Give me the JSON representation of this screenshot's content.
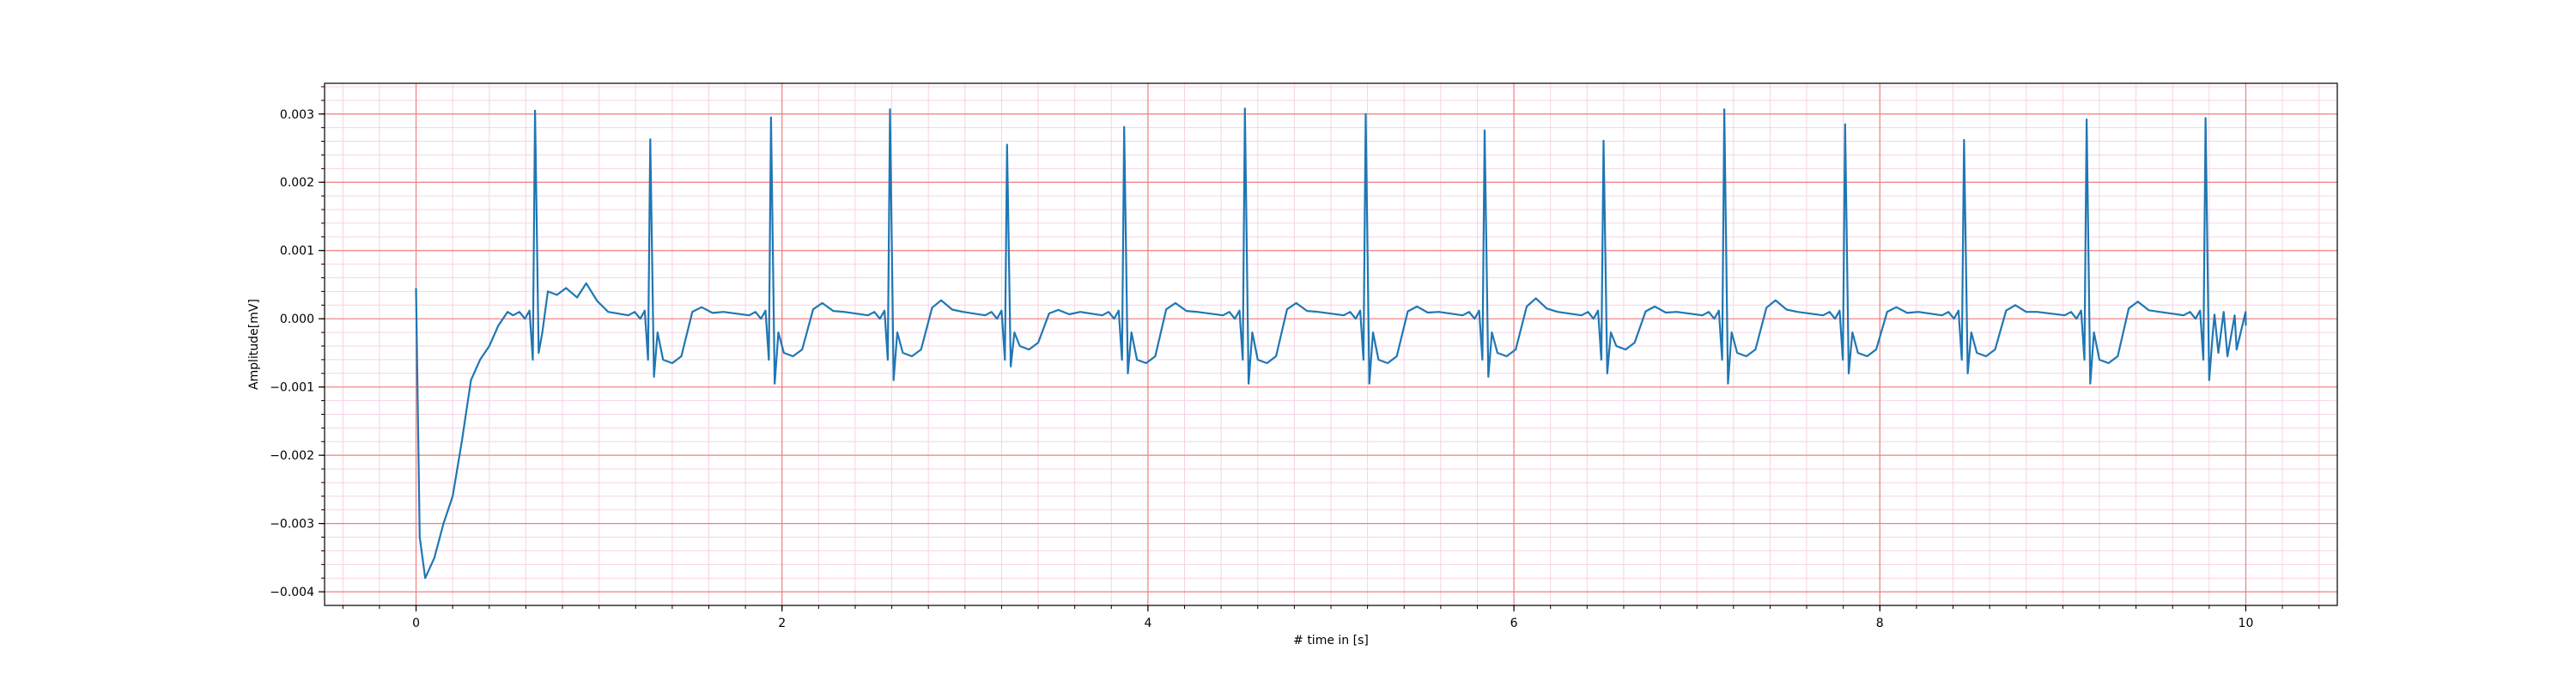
{
  "chart_data": {
    "type": "line",
    "title": "",
    "xlabel": "# time in [s]",
    "ylabel": "Amplitude[mV]",
    "xlim": [
      -0.5,
      10.5
    ],
    "ylim": [
      -0.0042,
      0.00345
    ],
    "x_ticks": [
      0,
      2,
      4,
      6,
      8,
      10
    ],
    "x_tick_labels": [
      "0",
      "2",
      "4",
      "6",
      "8",
      "10"
    ],
    "y_ticks": [
      -0.004,
      -0.003,
      -0.002,
      -0.001,
      0.0,
      0.001,
      0.002,
      0.003
    ],
    "y_tick_labels": [
      "−0.004",
      "−0.003",
      "−0.002",
      "−0.001",
      "0.000",
      "0.001",
      "0.002",
      "0.003"
    ],
    "x_minor_step": 0.2,
    "y_minor_step": 0.0002,
    "grid": true,
    "colors": {
      "line": "#1f77b4",
      "major_grid": "#f08080",
      "minor_grid": "#f7d2e6",
      "axes": "#000000"
    },
    "series": [
      {
        "baseline_start": [
          [
            0.0,
            0.00045
          ],
          [
            0.02,
            -0.0032
          ],
          [
            0.05,
            -0.0038
          ],
          [
            0.1,
            -0.0035
          ],
          [
            0.15,
            -0.003
          ],
          [
            0.2,
            -0.0026
          ],
          [
            0.25,
            -0.0018
          ],
          [
            0.3,
            -0.0009
          ],
          [
            0.35,
            -0.0006
          ],
          [
            0.4,
            -0.0004
          ],
          [
            0.45,
            -0.0001
          ],
          [
            0.5,
            0.0001
          ]
        ],
        "beats": [
          {
            "t": 0.65,
            "peak": 0.00305,
            "s": -0.0005,
            "st": 0.0004,
            "t_wave": 0.00052
          },
          {
            "t": 1.28,
            "peak": 0.00263,
            "s": -0.00085,
            "st": -0.0006,
            "t_wave": 0.00017
          },
          {
            "t": 1.94,
            "peak": 0.00295,
            "s": -0.00095,
            "st": -0.0005,
            "t_wave": 0.00023
          },
          {
            "t": 2.59,
            "peak": 0.00307,
            "s": -0.0009,
            "st": -0.0005,
            "t_wave": 0.00027
          },
          {
            "t": 3.23,
            "peak": 0.00255,
            "s": -0.0007,
            "st": -0.0004,
            "t_wave": 0.00013
          },
          {
            "t": 3.87,
            "peak": 0.00281,
            "s": -0.0008,
            "st": -0.0006,
            "t_wave": 0.00023
          },
          {
            "t": 4.53,
            "peak": 0.00308,
            "s": -0.00095,
            "st": -0.0006,
            "t_wave": 0.00023
          },
          {
            "t": 5.19,
            "peak": 0.003,
            "s": -0.00095,
            "st": -0.0006,
            "t_wave": 0.00018
          },
          {
            "t": 5.84,
            "peak": 0.00276,
            "s": -0.00085,
            "st": -0.0005,
            "t_wave": 0.0003
          },
          {
            "t": 6.49,
            "peak": 0.00261,
            "s": -0.0008,
            "st": -0.0004,
            "t_wave": 0.00018
          },
          {
            "t": 7.15,
            "peak": 0.00307,
            "s": -0.00095,
            "st": -0.0005,
            "t_wave": 0.00027
          },
          {
            "t": 7.81,
            "peak": 0.00285,
            "s": -0.0008,
            "st": -0.0005,
            "t_wave": 0.00017
          },
          {
            "t": 8.46,
            "peak": 0.00262,
            "s": -0.0008,
            "st": -0.0005,
            "t_wave": 0.0002
          },
          {
            "t": 9.13,
            "peak": 0.00292,
            "s": -0.00095,
            "st": -0.0006,
            "t_wave": 0.00025
          },
          {
            "t": 9.78,
            "peak": 0.00294,
            "s": -0.0009,
            "st": -0.0005,
            "t_wave": 0.0001
          }
        ],
        "end": [
          10.0,
          -0.0001
        ]
      }
    ]
  }
}
